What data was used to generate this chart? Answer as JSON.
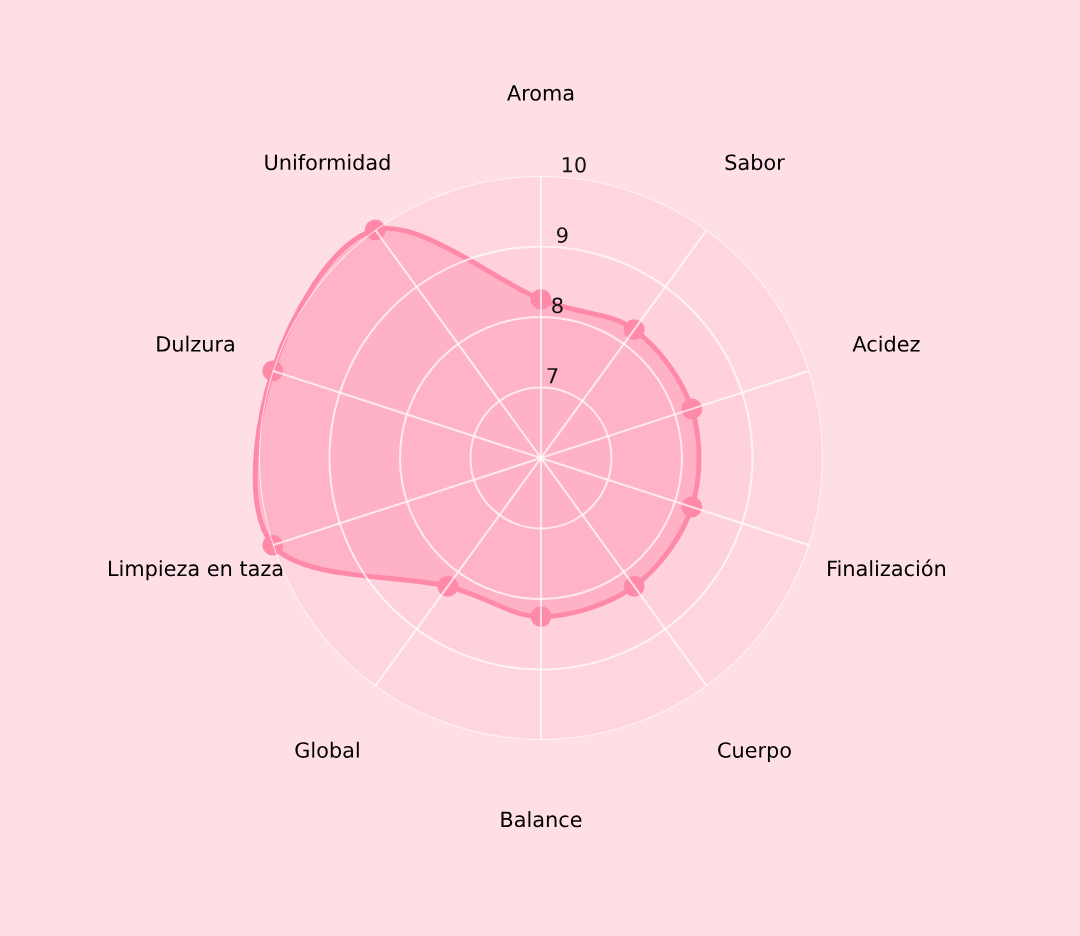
{
  "chart_data": {
    "type": "radar",
    "categories": [
      "Aroma",
      "Sabor",
      "Acidez",
      "Finalización",
      "Cuerpo",
      "Balance",
      "Global",
      "Limpieza en taza",
      "Dulzura",
      "Uniformidad"
    ],
    "series": [
      {
        "color": "#ff8aa8",
        "values": [
          8.25,
          8.25,
          8.25,
          8.25,
          8.25,
          8.25,
          8.25,
          10,
          10,
          10
        ]
      }
    ],
    "ylim": [
      6,
      10
    ],
    "yticks": [
      7,
      8,
      9,
      10
    ],
    "grid": true,
    "marker": "circle",
    "line_style": "solid"
  }
}
